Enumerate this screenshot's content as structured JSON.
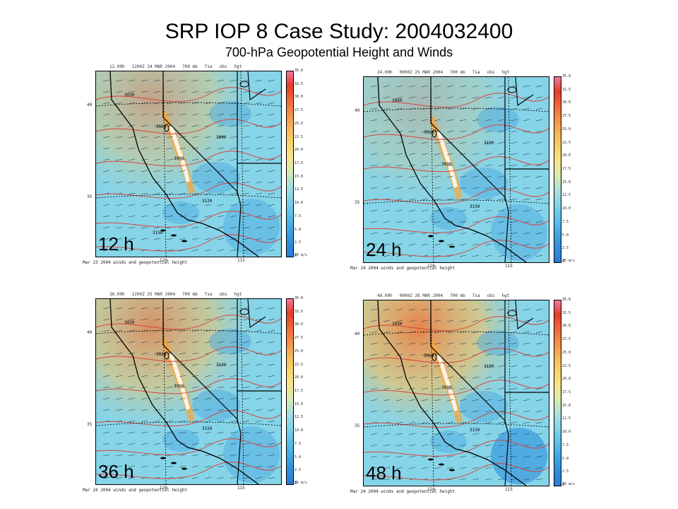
{
  "slide": {
    "title": "SRP IOP 8 Case Study: 2004032400",
    "subtitle": "700-hPa Geopotential Height and Winds"
  },
  "colorbar": {
    "labels": [
      "35.0",
      "32.5",
      "30.0",
      "27.5",
      "25.0",
      "22.5",
      "20.0",
      "17.5",
      "15.0",
      "12.5",
      "10.0",
      "7.5",
      "5.0",
      "2.5",
      "0"
    ],
    "unit": "35 m/s",
    "colors": [
      "#f07aa0",
      "#e33d2b",
      "#f1683a",
      "#f3914a",
      "#f7b65c",
      "#f9d36b",
      "#f6e58d",
      "#d6ecb3",
      "#a8e0dc",
      "#7fd3ec",
      "#5cc0ea",
      "#3fa7e3",
      "#2f8fdc",
      "#2a7bd4"
    ]
  },
  "panels": [
    {
      "lead_label": "12 h",
      "header": [
        "12.00h",
        "1200Z 24 MAR 2004",
        "700 mb",
        "Tsa",
        "obs",
        "hgt"
      ],
      "footer": "Mar 23 2004   winds and geopotential height",
      "lat_labels": [
        "40",
        "35"
      ],
      "lon_labels": [
        "120",
        "115"
      ],
      "contour_labels": [
        "3030",
        "3060",
        "3090",
        "3090",
        "3120",
        "3150"
      ],
      "warm_intensity": 0.55
    },
    {
      "lead_label": "24 h",
      "header": [
        "24.00h",
        "0000Z 25 MAR 2004",
        "700 mb",
        "Tsa",
        "obs",
        "hgt"
      ],
      "footer": "Mar 24 2004   winds and geopotential height",
      "lat_labels": [
        "40",
        "35"
      ],
      "lon_labels": [
        "120",
        "115"
      ],
      "contour_labels": [
        "3060",
        "3060",
        "3090",
        "3120",
        "3150"
      ],
      "warm_intensity": 0.3
    },
    {
      "lead_label": "36 h",
      "header": [
        "36.00h",
        "1200Z 25 MAR 2004",
        "700 mb",
        "Tsa",
        "obs",
        "hgt"
      ],
      "footer": "Mar 24 2004   winds and geopotential height",
      "lat_labels": [
        "40",
        "35"
      ],
      "lon_labels": [
        "120",
        "115"
      ],
      "contour_labels": [
        "3030",
        "3060",
        "3090",
        "3120",
        "3150"
      ],
      "warm_intensity": 0.75
    },
    {
      "lead_label": "48 h",
      "header": [
        "48.00h",
        "0000Z 26 MAR 2004",
        "700 mb",
        "Tsa",
        "obs",
        "hgt"
      ],
      "footer": "Mar 24 2004   winds and geopotential height",
      "lat_labels": [
        "40",
        "35"
      ],
      "lon_labels": [
        "120",
        "115"
      ],
      "contour_labels": [
        "3030",
        "3060",
        "3090",
        "3120",
        "3150"
      ],
      "warm_intensity": 0.9
    }
  ]
}
